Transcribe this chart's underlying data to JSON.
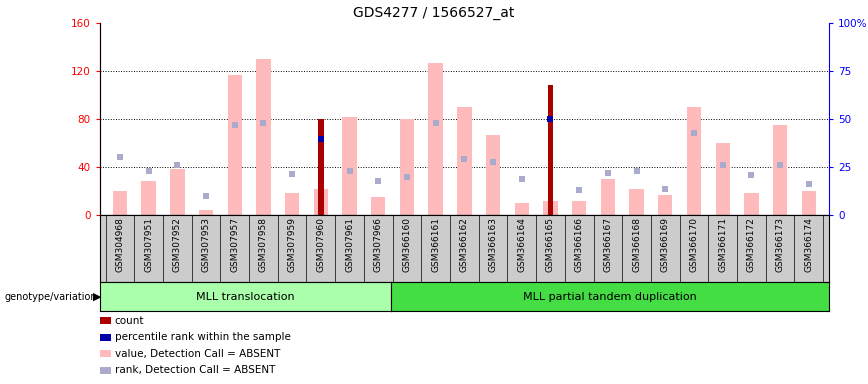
{
  "title": "GDS4277 / 1566527_at",
  "samples": [
    "GSM304968",
    "GSM307951",
    "GSM307952",
    "GSM307953",
    "GSM307957",
    "GSM307958",
    "GSM307959",
    "GSM307960",
    "GSM307961",
    "GSM307966",
    "GSM366160",
    "GSM366161",
    "GSM366162",
    "GSM366163",
    "GSM366164",
    "GSM366165",
    "GSM366166",
    "GSM366167",
    "GSM366168",
    "GSM366169",
    "GSM366170",
    "GSM366171",
    "GSM366172",
    "GSM366173",
    "GSM366174"
  ],
  "group1_label": "MLL translocation",
  "group2_label": "MLL partial tandem duplication",
  "group1_count": 10,
  "group2_count": 15,
  "ylim_left": [
    0,
    160
  ],
  "ylim_right": [
    0,
    100
  ],
  "yticks_left": [
    0,
    40,
    80,
    120,
    160
  ],
  "yticks_right": [
    0,
    25,
    50,
    75,
    100
  ],
  "ytick_right_labels": [
    "0",
    "25",
    "50",
    "75",
    "100%"
  ],
  "pink_values": [
    20,
    28,
    38,
    4,
    117,
    130,
    18,
    22,
    82,
    15,
    80,
    127,
    90,
    67,
    10,
    12,
    12,
    30,
    22,
    17,
    90,
    60,
    18,
    75,
    20
  ],
  "blue_rank_values": [
    48,
    37,
    42,
    16,
    75,
    77,
    34,
    65,
    37,
    28,
    32,
    77,
    47,
    44,
    30,
    80,
    21,
    35,
    37,
    22,
    68,
    42,
    33,
    42,
    26
  ],
  "count_values": [
    0,
    0,
    0,
    0,
    0,
    0,
    0,
    80,
    0,
    0,
    0,
    0,
    0,
    0,
    0,
    108,
    0,
    0,
    0,
    0,
    0,
    0,
    0,
    0,
    0
  ],
  "percentile_values": [
    0,
    0,
    0,
    0,
    0,
    0,
    0,
    63,
    0,
    0,
    0,
    0,
    0,
    0,
    0,
    80,
    0,
    0,
    0,
    0,
    0,
    0,
    0,
    0,
    0
  ],
  "color_pink": "#FFBBBB",
  "color_lightblue": "#AAAACC",
  "color_darkred": "#AA0000",
  "color_darkblue": "#0000AA",
  "color_green_light": "#AAFFAA",
  "color_green_dark": "#44DD44",
  "color_gray_box": "#CCCCCC",
  "legend_labels": [
    "count",
    "percentile rank within the sample",
    "value, Detection Call = ABSENT",
    "rank, Detection Call = ABSENT"
  ]
}
